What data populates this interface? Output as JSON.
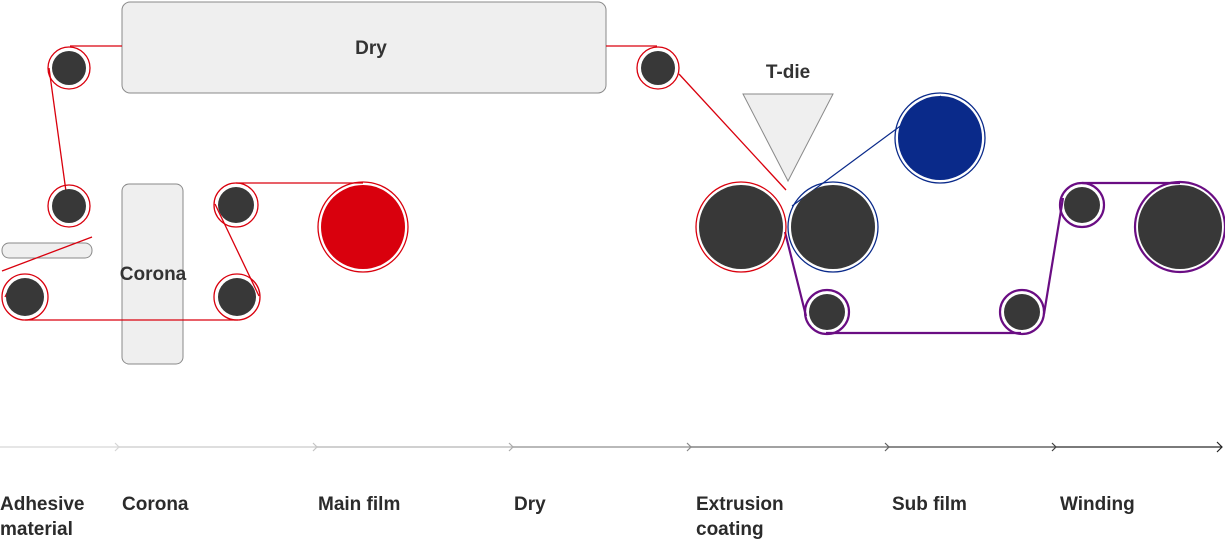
{
  "labels": {
    "dry": "Dry",
    "t_die": "T-die",
    "corona": "Corona"
  },
  "stages": [
    {
      "line1": "Adhesive",
      "line2": "material"
    },
    {
      "line1": "Corona",
      "line2": ""
    },
    {
      "line1": "Main film",
      "line2": ""
    },
    {
      "line1": "Dry",
      "line2": ""
    },
    {
      "line1": "Extrusion",
      "line2": "coating"
    },
    {
      "line1": "Sub film",
      "line2": ""
    },
    {
      "line1": "Winding",
      "line2": ""
    }
  ],
  "colors": {
    "main_web": "#d9000d",
    "blue_web": "#0a2a8a",
    "purple_web": "#6a0d83",
    "roller": "#383838",
    "box_fill": "#efefef",
    "box_stroke": "#8a8a8a"
  }
}
